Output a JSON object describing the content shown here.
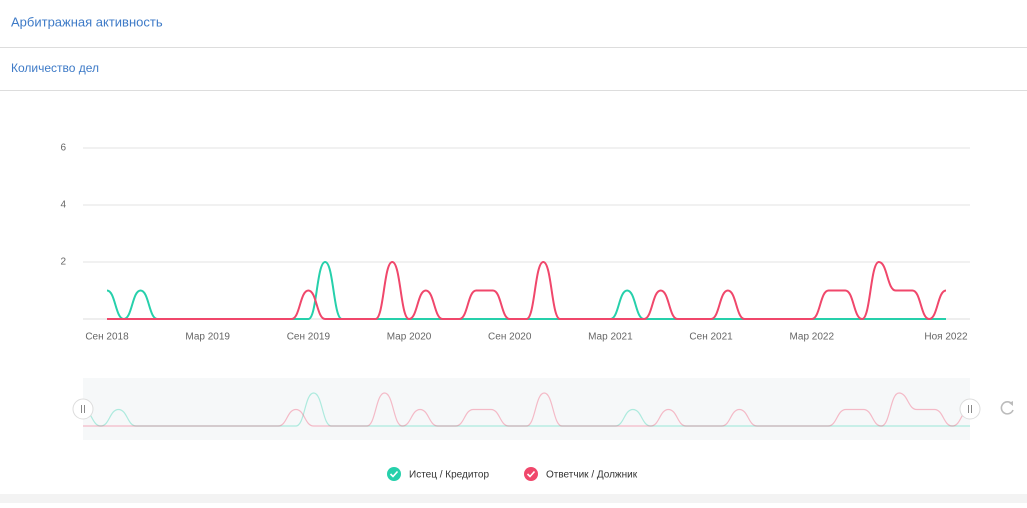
{
  "header": {
    "title": "Арбитражная активность"
  },
  "section": {
    "title": "Количество дел"
  },
  "chart_data": {
    "type": "line",
    "categories": [
      "Сен 2018",
      null,
      null,
      null,
      null,
      null,
      "Мар 2019",
      null,
      null,
      null,
      null,
      null,
      "Сен 2019",
      null,
      null,
      null,
      null,
      null,
      "Мар 2020",
      null,
      null,
      null,
      null,
      null,
      "Сен 2020",
      null,
      null,
      null,
      null,
      null,
      "Мар 2021",
      null,
      null,
      null,
      null,
      null,
      "Сен 2021",
      null,
      null,
      null,
      null,
      null,
      "Мар 2022",
      null,
      null,
      null,
      null,
      null,
      null,
      null,
      "Ноя 2022"
    ],
    "series": [
      {
        "name": "Истец / Кредитор",
        "color": "#26d0ab",
        "values": [
          1,
          0,
          1,
          0,
          0,
          0,
          0,
          0,
          0,
          0,
          0,
          0,
          0,
          2,
          0,
          0,
          0,
          0,
          0,
          0,
          0,
          0,
          0,
          0,
          0,
          0,
          0,
          0,
          0,
          0,
          0,
          1,
          0,
          0,
          0,
          0,
          0,
          0,
          0,
          0,
          0,
          0,
          0,
          0,
          0,
          0,
          0,
          0,
          0,
          0,
          0
        ]
      },
      {
        "name": "Ответчик / Должник",
        "color": "#f0476b",
        "values": [
          0,
          0,
          0,
          0,
          0,
          0,
          0,
          0,
          0,
          0,
          0,
          0,
          1,
          0,
          0,
          0,
          0,
          2,
          0,
          1,
          0,
          0,
          1,
          1,
          0,
          0,
          2,
          0,
          0,
          0,
          0,
          0,
          0,
          1,
          0,
          0,
          0,
          1,
          0,
          0,
          0,
          0,
          0,
          1,
          1,
          0,
          2,
          1,
          1,
          0,
          1
        ]
      }
    ],
    "ylim": [
      0,
      6
    ],
    "yticks": [
      2,
      4,
      6
    ],
    "grid": true
  }
}
